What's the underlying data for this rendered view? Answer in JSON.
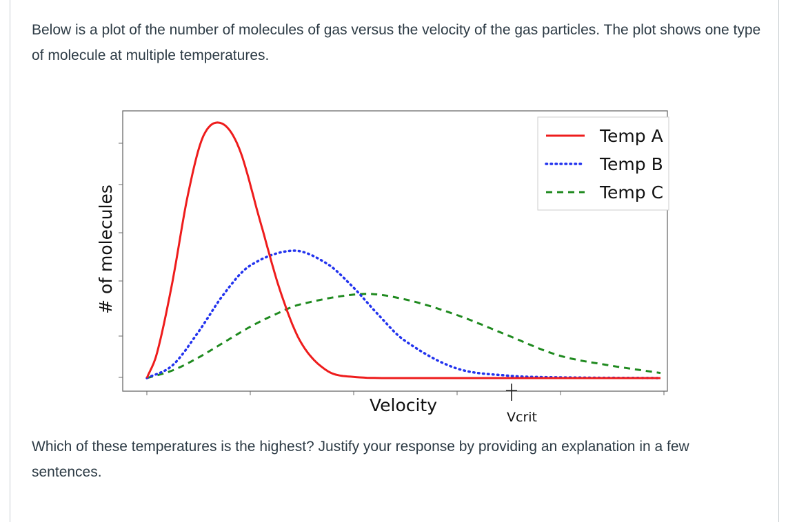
{
  "question": {
    "intro": "Below is a plot of the number of molecules of gas versus the velocity of the gas particles. The plot shows one type of molecule at multiple temperatures.",
    "prompt": "Which of these temperatures is the highest? Justify your response by providing an explanation in a few sentences."
  },
  "chart_data": {
    "type": "line",
    "title": "",
    "xlabel": "Velocity",
    "ylabel": "# of molecules",
    "xlim": [
      0,
      1
    ],
    "ylim": [
      0,
      1.1
    ],
    "grid": false,
    "legend": "top-right",
    "annotations": [
      {
        "text": "Vcrit",
        "x": 0.71
      }
    ],
    "series": [
      {
        "name": "Temp A",
        "color": "#ee1c1c",
        "style": "solid",
        "peak_x": 0.145,
        "peak_y": 1.0,
        "end_y": 0.0,
        "x": [
          0.0,
          0.02,
          0.05,
          0.08,
          0.11,
          0.145,
          0.18,
          0.22,
          0.26,
          0.3,
          0.35,
          0.4,
          0.5,
          0.7,
          1.0
        ],
        "y": [
          0.0,
          0.1,
          0.38,
          0.72,
          0.95,
          1.0,
          0.9,
          0.62,
          0.34,
          0.14,
          0.03,
          0.005,
          0.0,
          0.0,
          0.0
        ]
      },
      {
        "name": "Temp B",
        "color": "#2233ee",
        "style": "dotted",
        "peak_x": 0.285,
        "peak_y": 0.5,
        "end_y": 0.0,
        "x": [
          0.0,
          0.05,
          0.1,
          0.15,
          0.2,
          0.285,
          0.35,
          0.4,
          0.45,
          0.5,
          0.6,
          0.7,
          0.8,
          1.0
        ],
        "y": [
          0.0,
          0.05,
          0.18,
          0.33,
          0.44,
          0.5,
          0.45,
          0.36,
          0.25,
          0.15,
          0.04,
          0.01,
          0.003,
          0.0
        ]
      },
      {
        "name": "Temp C",
        "color": "#1f8a1f",
        "style": "dashed",
        "peak_x": 0.42,
        "peak_y": 0.33,
        "end_y": 0.02,
        "x": [
          0.0,
          0.05,
          0.1,
          0.15,
          0.2,
          0.25,
          0.3,
          0.42,
          0.5,
          0.6,
          0.7,
          0.8,
          0.9,
          1.0
        ],
        "y": [
          0.0,
          0.03,
          0.08,
          0.14,
          0.2,
          0.25,
          0.29,
          0.33,
          0.31,
          0.25,
          0.17,
          0.09,
          0.05,
          0.02
        ]
      }
    ]
  }
}
